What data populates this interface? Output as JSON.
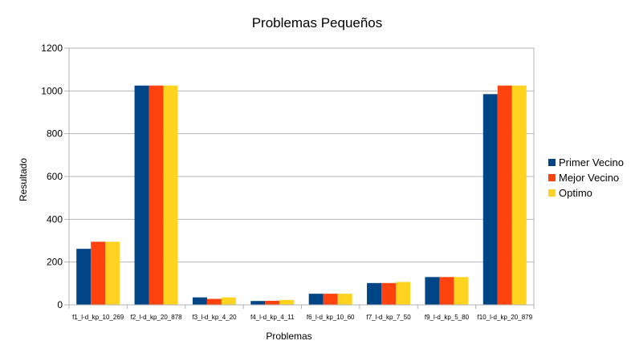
{
  "chart_data": {
    "type": "bar",
    "title": "Problemas Pequeños",
    "xlabel": "Problemas",
    "ylabel": "Resultado",
    "ylim": [
      0,
      1200
    ],
    "yticks": [
      0,
      200,
      400,
      600,
      800,
      1000,
      1200
    ],
    "grid": true,
    "legend_position": "right",
    "categories": [
      "f1_l-d_kp_10_269",
      "f2_l-d_kp_20_878",
      "f3_l-d_kp_4_20",
      "f4_l-d_kp_4_11",
      "f6_l-d_kp_10_60",
      "f7_l-d_kp_7_50",
      "f9_l-d_kp_5_80",
      "f10_l-d_kp_20_879"
    ],
    "series": [
      {
        "name": "Primer Vecino",
        "color": "#004586",
        "values": [
          262,
          1025,
          35,
          18,
          52,
          102,
          130,
          985
        ]
      },
      {
        "name": "Mejor Vecino",
        "color": "#ff420e",
        "values": [
          295,
          1025,
          28,
          19,
          52,
          102,
          130,
          1025
        ]
      },
      {
        "name": "Optimo",
        "color": "#ffd320",
        "values": [
          295,
          1025,
          35,
          23,
          52,
          107,
          130,
          1025
        ]
      }
    ]
  }
}
